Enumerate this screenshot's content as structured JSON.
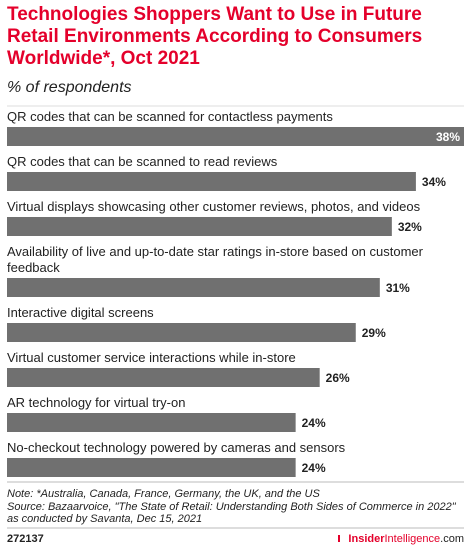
{
  "title": "Technologies Shoppers Want to Use in Future Retail Environments According to Consumers Worldwide*, Oct 2021",
  "subtitle": "% of respondents",
  "chart_data": {
    "type": "bar",
    "orientation": "horizontal",
    "categories": [
      [
        "QR codes that can be scanned for contactless payments"
      ],
      [
        "QR codes that can be scanned to read reviews"
      ],
      [
        "Virtual displays showcasing other customer reviews, photos, and videos"
      ],
      [
        "Availability of live and up-to-date star ratings in-store based on customer",
        "feedback"
      ],
      [
        "Interactive digital screens"
      ],
      [
        "Virtual customer service interactions while in-store"
      ],
      [
        "AR technology for virtual try-on"
      ],
      [
        "No-checkout technology powered by cameras and sensors"
      ]
    ],
    "values": [
      38,
      34,
      32,
      31,
      29,
      26,
      24,
      24
    ],
    "value_labels": [
      "38%",
      "34%",
      "32%",
      "31%",
      "29%",
      "26%",
      "24%",
      "24%"
    ],
    "xlim": [
      0,
      38
    ],
    "bar_color": "#707070",
    "grid": false,
    "legend": "none"
  },
  "footer": {
    "note": "Note: *Australia, Canada, France, Germany, the UK, and the US",
    "source_line1": "Source: Bazaarvoice, \"The State of Retail: Understanding Both Sides of Commerce in 2022\"",
    "source_line2": "as conducted by Savanta, Dec 15, 2021",
    "code": "272137",
    "brand_part1": "Insider",
    "brand_part2": "Intelligence",
    "brand_suffix": ".com"
  },
  "colors": {
    "accent": "#e4002b",
    "text": "#222222",
    "bar": "#707070"
  }
}
